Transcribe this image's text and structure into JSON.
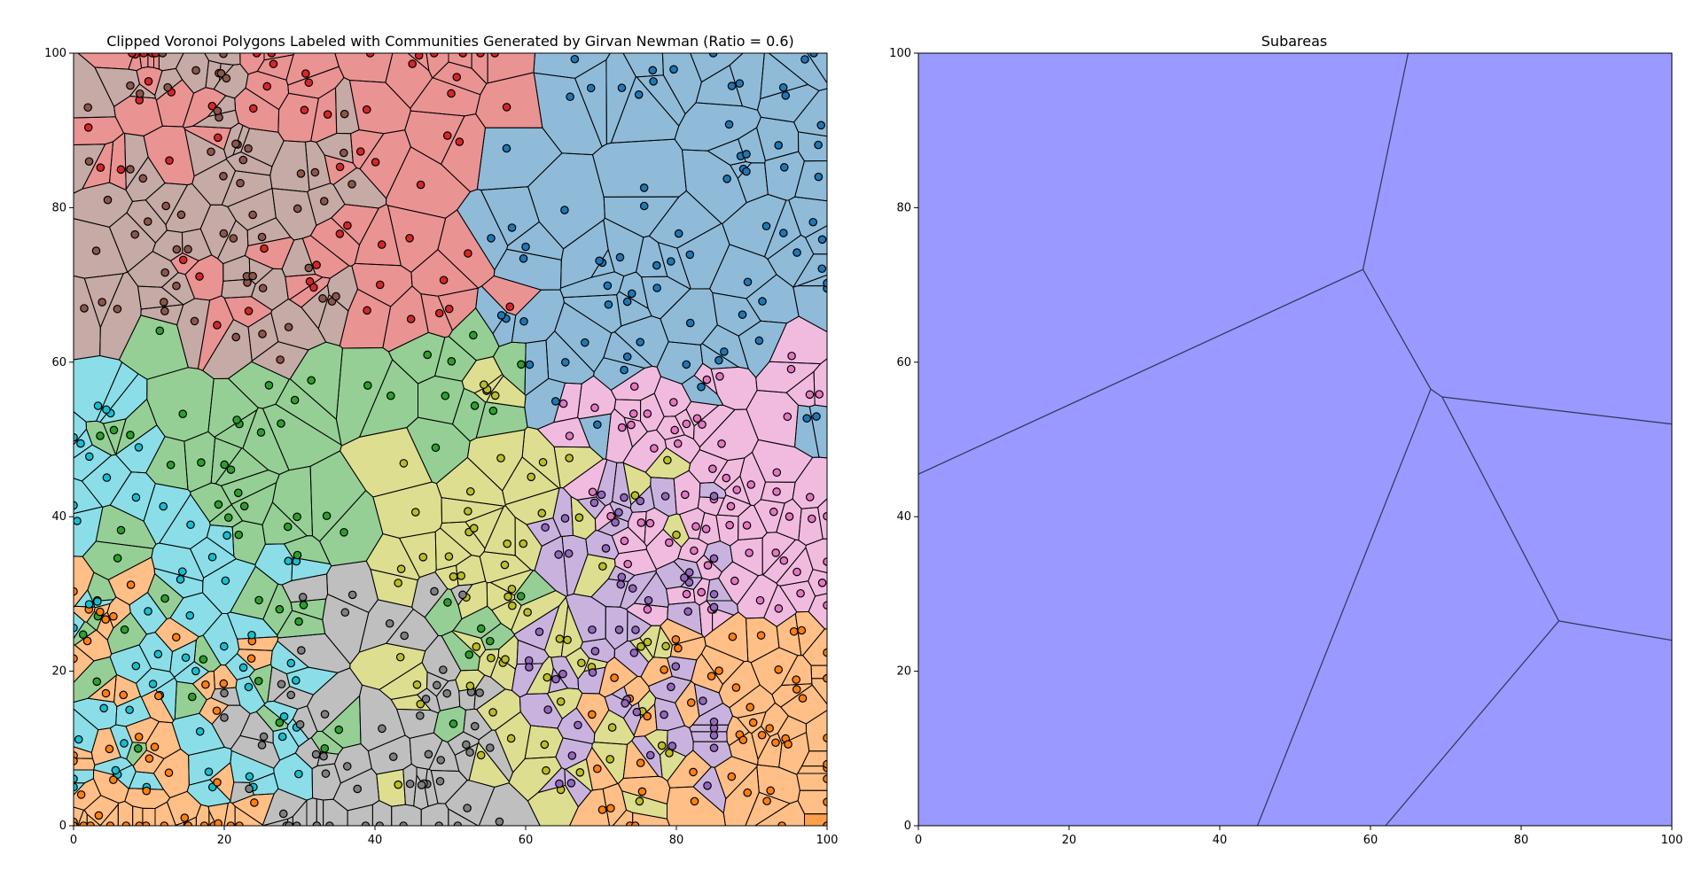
{
  "colors": {
    "blue": "#1f77b4",
    "orange": "#ff7f0e",
    "green": "#2ca02c",
    "red": "#d62728",
    "purple": "#9467bd",
    "brown": "#8c564b",
    "pink": "#e377c2",
    "gray": "#7f7f7f",
    "olive": "#bcbd22",
    "cyan": "#17becf",
    "subarea_fill": "#9999ff",
    "subarea_edge": "#333355"
  },
  "chart_data": [
    {
      "type": "scatter",
      "title": "Clipped Voronoi Polygons Labeled with Communities Generated by Girvan Newman (Ratio = 0.6)",
      "xlabel": "",
      "ylabel": "",
      "xlim": [
        0,
        100
      ],
      "ylim": [
        0,
        100
      ],
      "xticks": [
        "0",
        "20",
        "40",
        "60",
        "80",
        "100"
      ],
      "yticks": [
        "0",
        "20",
        "40",
        "60",
        "80",
        "100"
      ],
      "grid": false,
      "regions": [
        {
          "color": "brown",
          "center": [
            18,
            82
          ],
          "ranges": [
            [
              0,
              40
            ],
            [
              60,
              100
            ]
          ]
        },
        {
          "color": "red",
          "center": [
            30,
            86
          ],
          "ranges": [
            [
              0,
              62
            ],
            [
              55,
              100
            ]
          ]
        },
        {
          "color": "blue",
          "center": [
            82,
            78
          ],
          "ranges": [
            [
              60,
              100
            ],
            [
              45,
              100
            ]
          ]
        },
        {
          "color": "pink",
          "center": [
            87,
            44
          ],
          "ranges": [
            [
              70,
              100
            ],
            [
              28,
              64
            ]
          ]
        },
        {
          "color": "green",
          "center": [
            30,
            36
          ],
          "ranges": [
            [
              0,
              62
            ],
            [
              10,
              70
            ]
          ]
        },
        {
          "color": "cyan",
          "center": [
            12,
            25
          ],
          "ranges": [
            [
              0,
              40
            ],
            [
              5,
              60
            ]
          ]
        },
        {
          "color": "olive",
          "center": [
            62,
            26
          ],
          "ranges": [
            [
              40,
              80
            ],
            [
              0,
              50
            ]
          ]
        },
        {
          "color": "gray",
          "center": [
            38,
            12
          ],
          "ranges": [
            [
              20,
              60
            ],
            [
              0,
              40
            ]
          ]
        },
        {
          "color": "orange",
          "center": [
            86,
            12
          ],
          "ranges": [
            [
              60,
              100
            ],
            [
              0,
              30
            ]
          ]
        },
        {
          "color": "orange",
          "center": [
            10,
            8
          ],
          "ranges": [
            [
              0,
              30
            ],
            [
              0,
              50
            ]
          ]
        },
        {
          "color": "purple",
          "center": [
            74,
            24
          ],
          "ranges": [
            [
              55,
              85
            ],
            [
              5,
              45
            ]
          ]
        }
      ]
    },
    {
      "type": "area",
      "title": "Subareas",
      "xlabel": "",
      "ylabel": "",
      "xlim": [
        0,
        100
      ],
      "ylim": [
        0,
        100
      ],
      "xticks": [
        "0",
        "20",
        "40",
        "60",
        "80",
        "100"
      ],
      "yticks": [
        "0",
        "20",
        "40",
        "60",
        "80",
        "100"
      ],
      "grid": false,
      "boundaries": [
        [
          [
            0,
            45.5
          ],
          [
            59,
            72
          ],
          [
            65,
            100
          ]
        ],
        [
          [
            59,
            72
          ],
          [
            68,
            56.5
          ],
          [
            45,
            0
          ]
        ],
        [
          [
            68,
            56.5
          ],
          [
            69.5,
            55.5
          ],
          [
            85,
            26.5
          ],
          [
            62,
            0
          ]
        ],
        [
          [
            69.5,
            55.5
          ],
          [
            100,
            52
          ]
        ],
        [
          [
            85,
            26.5
          ],
          [
            100,
            24
          ]
        ]
      ]
    }
  ]
}
